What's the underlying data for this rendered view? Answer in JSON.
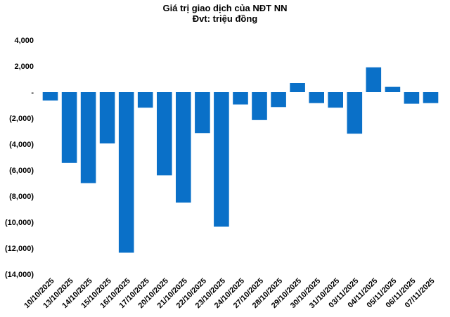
{
  "chart_data": {
    "type": "bar",
    "title": "Giá trị giao dịch của NĐT NN",
    "subtitle": "Đvt: triệu đồng",
    "color": "#0A70C8",
    "ylim": [
      -14000,
      4000
    ],
    "yticks": [
      {
        "value": 4000,
        "label": "4,000"
      },
      {
        "value": 2000,
        "label": "2,000"
      },
      {
        "value": 0,
        "label": "-"
      },
      {
        "value": -2000,
        "label": "(2,000)"
      },
      {
        "value": -4000,
        "label": "(4,000)"
      },
      {
        "value": -6000,
        "label": "(6,000)"
      },
      {
        "value": -8000,
        "label": "(8,000)"
      },
      {
        "value": -10000,
        "label": "(10,000)"
      },
      {
        "value": -12000,
        "label": "(12,000)"
      },
      {
        "value": -14000,
        "label": "(14,000)"
      }
    ],
    "categories": [
      "10/10/2025",
      "13/10/2025",
      "14/10/2025",
      "15/10/2025",
      "16/10/2025",
      "17/10/2025",
      "20/10/2025",
      "21/10/2025",
      "22/10/2025",
      "23/10/2025",
      "24/10/2025",
      "27/10/2025",
      "28/10/2025",
      "29/10/2025",
      "30/10/2025",
      "31/10/2025",
      "03/11/2025",
      "04/11/2025",
      "05/11/2025",
      "06/11/2025",
      "07/11/2025"
    ],
    "values": [
      -650,
      -5450,
      -7000,
      -3950,
      -12350,
      -1200,
      -6400,
      -8500,
      -3150,
      -10350,
      -950,
      -2150,
      -1150,
      700,
      -850,
      -1200,
      -3200,
      1900,
      400,
      -900,
      -850
    ],
    "grid": false,
    "legend": "none"
  }
}
